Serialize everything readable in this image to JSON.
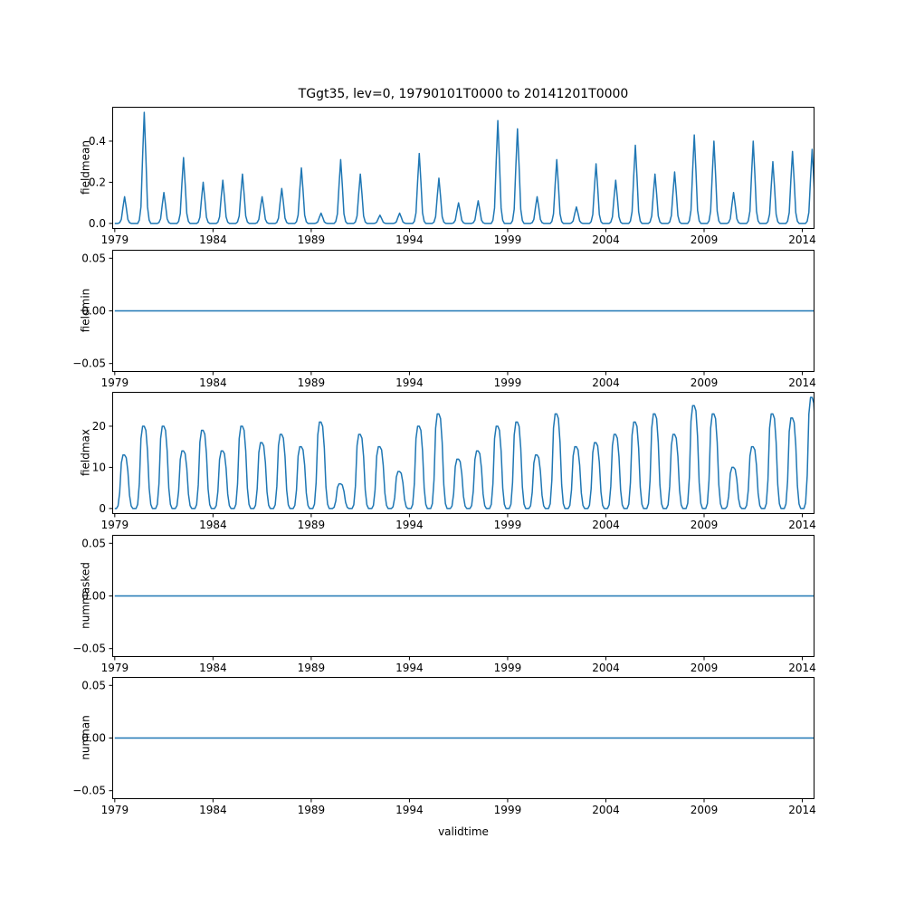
{
  "title": "TGgt35, lev=0, 19790101T0000 to 20141201T0000",
  "xlabel": "validtime",
  "line_color": "#1f77b4",
  "x_start_year": 1979,
  "xlim": [
    1978.87,
    2014.62
  ],
  "xticks": [
    1979,
    1984,
    1989,
    1994,
    1999,
    2004,
    2009,
    2014
  ],
  "xtick_labels": [
    "1979",
    "1984",
    "1989",
    "1994",
    "1999",
    "2004",
    "2009",
    "2014"
  ],
  "chart_data": [
    {
      "type": "line",
      "ylabel": "fieldmean",
      "ylim": [
        -0.027,
        0.567
      ],
      "yticks": [
        0.0,
        0.2,
        0.4
      ],
      "ytick_labels": [
        "0.0",
        "0.2",
        "0.4"
      ],
      "grid": false,
      "seasonal_profile": [
        0,
        0,
        0,
        0.03,
        0.15,
        0.6,
        1,
        0.6,
        0.15,
        0.03,
        0,
        0
      ],
      "annual_peaks": [
        0.13,
        0.54,
        0.15,
        0.32,
        0.2,
        0.21,
        0.24,
        0.13,
        0.17,
        0.27,
        0.05,
        0.31,
        0.24,
        0.04,
        0.05,
        0.34,
        0.22,
        0.1,
        0.11,
        0.5,
        0.46,
        0.13,
        0.31,
        0.08,
        0.29,
        0.21,
        0.38,
        0.24,
        0.25,
        0.43,
        0.4,
        0.15,
        0.4,
        0.3,
        0.35,
        0.36
      ]
    },
    {
      "type": "line",
      "ylabel": "fieldmin",
      "ylim": [
        -0.058,
        0.058
      ],
      "yticks": [
        -0.05,
        0.0,
        0.05
      ],
      "ytick_labels": [
        "−0.05",
        "0.00",
        "0.05"
      ],
      "grid": false,
      "constant_value": 0.0
    },
    {
      "type": "line",
      "ylabel": "fieldmax",
      "ylim": [
        -1.35,
        28.35
      ],
      "yticks": [
        0,
        10,
        20
      ],
      "ytick_labels": [
        "0",
        "10",
        "20"
      ],
      "grid": false,
      "seasonal_profile": [
        0,
        0,
        0.05,
        0.3,
        0.85,
        1,
        1,
        0.95,
        0.7,
        0.25,
        0.05,
        0
      ],
      "annual_peaks": [
        13,
        20,
        20,
        14,
        19,
        14,
        20,
        16,
        18,
        15,
        21,
        6,
        18,
        15,
        9,
        20,
        23,
        12,
        14,
        20,
        21,
        13,
        23,
        15,
        16,
        18,
        21,
        23,
        18,
        25,
        23,
        10,
        15,
        23,
        22,
        27
      ]
    },
    {
      "type": "line",
      "ylabel": "nummasked",
      "ylim": [
        -0.058,
        0.058
      ],
      "yticks": [
        -0.05,
        0.0,
        0.05
      ],
      "ytick_labels": [
        "−0.05",
        "0.00",
        "0.05"
      ],
      "grid": false,
      "constant_value": 0.0
    },
    {
      "type": "line",
      "ylabel": "numnan",
      "ylim": [
        -0.058,
        0.058
      ],
      "yticks": [
        -0.05,
        0.0,
        0.05
      ],
      "ytick_labels": [
        "−0.05",
        "0.00",
        "0.05"
      ],
      "grid": false,
      "constant_value": 0.0
    }
  ]
}
